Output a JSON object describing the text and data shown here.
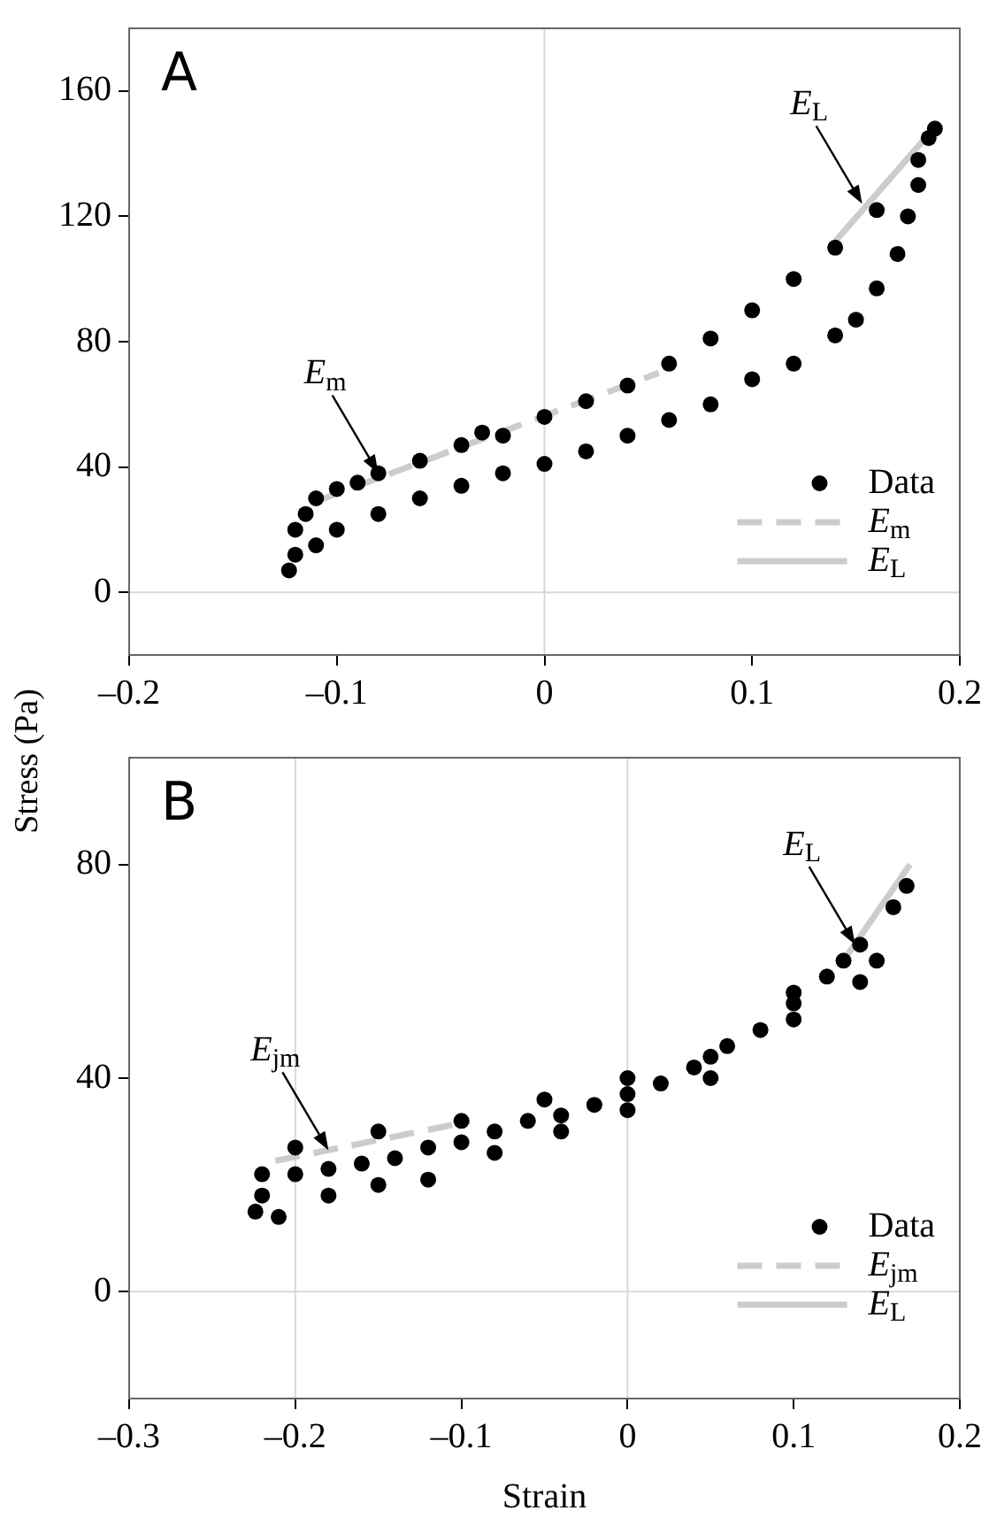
{
  "chart_data": [
    {
      "type": "scatter",
      "title": "A",
      "ylabel": "Stress (Pa)",
      "xlim": [
        -0.2,
        0.2
      ],
      "xticks": [
        {
          "value": -0.2,
          "label": "–0.2"
        },
        {
          "value": -0.1,
          "label": "–0.1"
        },
        0,
        0.1,
        0.2
      ],
      "ylim": [
        -20,
        180
      ],
      "yticks": [
        0,
        40,
        80,
        120,
        160
      ],
      "grid": false,
      "legend": "bottom right",
      "ref_lines": [
        {
          "axis": "x",
          "value": 0,
          "color": "#d9d9d9"
        },
        {
          "axis": "y",
          "value": 0,
          "color": "#d9d9d9"
        }
      ],
      "annotations": [
        {
          "text": "E$_{m}$",
          "x": -0.08,
          "y": 38
        },
        {
          "text": "E$_{L}$",
          "x": 0.153,
          "y": 124
        }
      ],
      "series": [
        {
          "name": "Data",
          "type": "scatter",
          "marker": "circle",
          "color": "#000000",
          "x": [
            -0.12,
            -0.115,
            -0.11,
            -0.1,
            -0.09,
            -0.08,
            -0.06,
            -0.04,
            -0.03,
            -0.02,
            0,
            0.02,
            0.04,
            0.06,
            0.08,
            0.1,
            0.12,
            0.14,
            0.16,
            0.18,
            0.188,
            0.185,
            0.18,
            0.175,
            0.17,
            0.16,
            0.15,
            0.14,
            0.12,
            0.1,
            0.08,
            0.06,
            0.04,
            0.02,
            0,
            -0.02,
            -0.04,
            -0.06,
            -0.08,
            -0.1,
            -0.11,
            -0.12,
            -0.123
          ],
          "values": [
            20,
            25,
            30,
            33,
            35,
            38,
            42,
            47,
            51,
            50,
            56,
            61,
            66,
            73,
            81,
            90,
            100,
            110,
            122,
            138,
            148,
            145,
            130,
            120,
            108,
            97,
            87,
            82,
            73,
            68,
            60,
            55,
            50,
            45,
            41,
            38,
            34,
            30,
            25,
            20,
            15,
            12,
            7
          ]
        },
        {
          "name": "E$_{m}$",
          "type": "line",
          "line_style": "dashed",
          "marker": "none",
          "color": "#cccccc",
          "x": [
            -0.11,
            0.055
          ],
          "values": [
            29,
            70
          ]
        },
        {
          "name": "E$_{L}$",
          "type": "line",
          "line_style": "solid",
          "marker": "none",
          "color": "#cccccc",
          "x": [
            0.14,
            0.19
          ],
          "values": [
            112,
            150
          ]
        }
      ]
    },
    {
      "type": "scatter",
      "title": "B",
      "xlabel": "Strain",
      "xlim": [
        -0.3,
        0.2
      ],
      "xticks": [
        {
          "value": -0.3,
          "label": "–0.3"
        },
        {
          "value": -0.2,
          "label": "–0.2"
        },
        {
          "value": -0.1,
          "label": "–0.1"
        },
        0,
        0.1,
        0.2
      ],
      "ylim": [
        -20,
        100
      ],
      "yticks": [
        0,
        40,
        80
      ],
      "grid": false,
      "legend": "bottom right",
      "ref_lines": [
        {
          "axis": "x",
          "value": -0.2,
          "color": "#d9d9d9"
        },
        {
          "axis": "x",
          "value": 0,
          "color": "#d9d9d9"
        },
        {
          "axis": "y",
          "value": 0,
          "color": "#d9d9d9"
        }
      ],
      "annotations": [
        {
          "text": "E$_{jm}$",
          "x": -0.18,
          "y": 26.5
        },
        {
          "text": "E$_{L}$",
          "x": 0.137,
          "y": 65
        }
      ],
      "series": [
        {
          "name": "Data",
          "type": "scatter",
          "marker": "circle",
          "color": "#000000",
          "x": [
            -0.224,
            -0.22,
            -0.22,
            -0.21,
            -0.2,
            -0.2,
            -0.18,
            -0.18,
            -0.16,
            -0.15,
            -0.15,
            -0.14,
            -0.12,
            -0.12,
            -0.1,
            -0.1,
            -0.08,
            -0.08,
            -0.06,
            -0.05,
            -0.04,
            -0.04,
            -0.02,
            0,
            0,
            0,
            0.02,
            0.04,
            0.05,
            0.05,
            0.06,
            0.08,
            0.1,
            0.1,
            0.1,
            0.12,
            0.13,
            0.14,
            0.14,
            0.15,
            0.16,
            0.168
          ],
          "values": [
            15,
            18,
            22,
            14,
            22,
            27,
            23,
            18,
            24,
            30,
            20,
            25,
            27,
            21,
            28,
            32,
            30,
            26,
            32,
            36,
            33,
            30,
            35,
            37,
            40,
            34,
            39,
            42,
            44,
            40,
            46,
            49,
            54,
            56,
            51,
            59,
            62,
            65,
            58,
            62,
            72,
            76
          ]
        },
        {
          "name": "E$_{jm}$",
          "type": "line",
          "line_style": "dashed",
          "marker": "none",
          "color": "#cccccc",
          "x": [
            -0.212,
            -0.095
          ],
          "values": [
            24.5,
            31.9
          ]
        },
        {
          "name": "E$_{L}$",
          "type": "line",
          "line_style": "solid",
          "marker": "none",
          "color": "#cccccc",
          "x": [
            0.13,
            0.17
          ],
          "values": [
            62,
            80
          ]
        }
      ]
    }
  ]
}
